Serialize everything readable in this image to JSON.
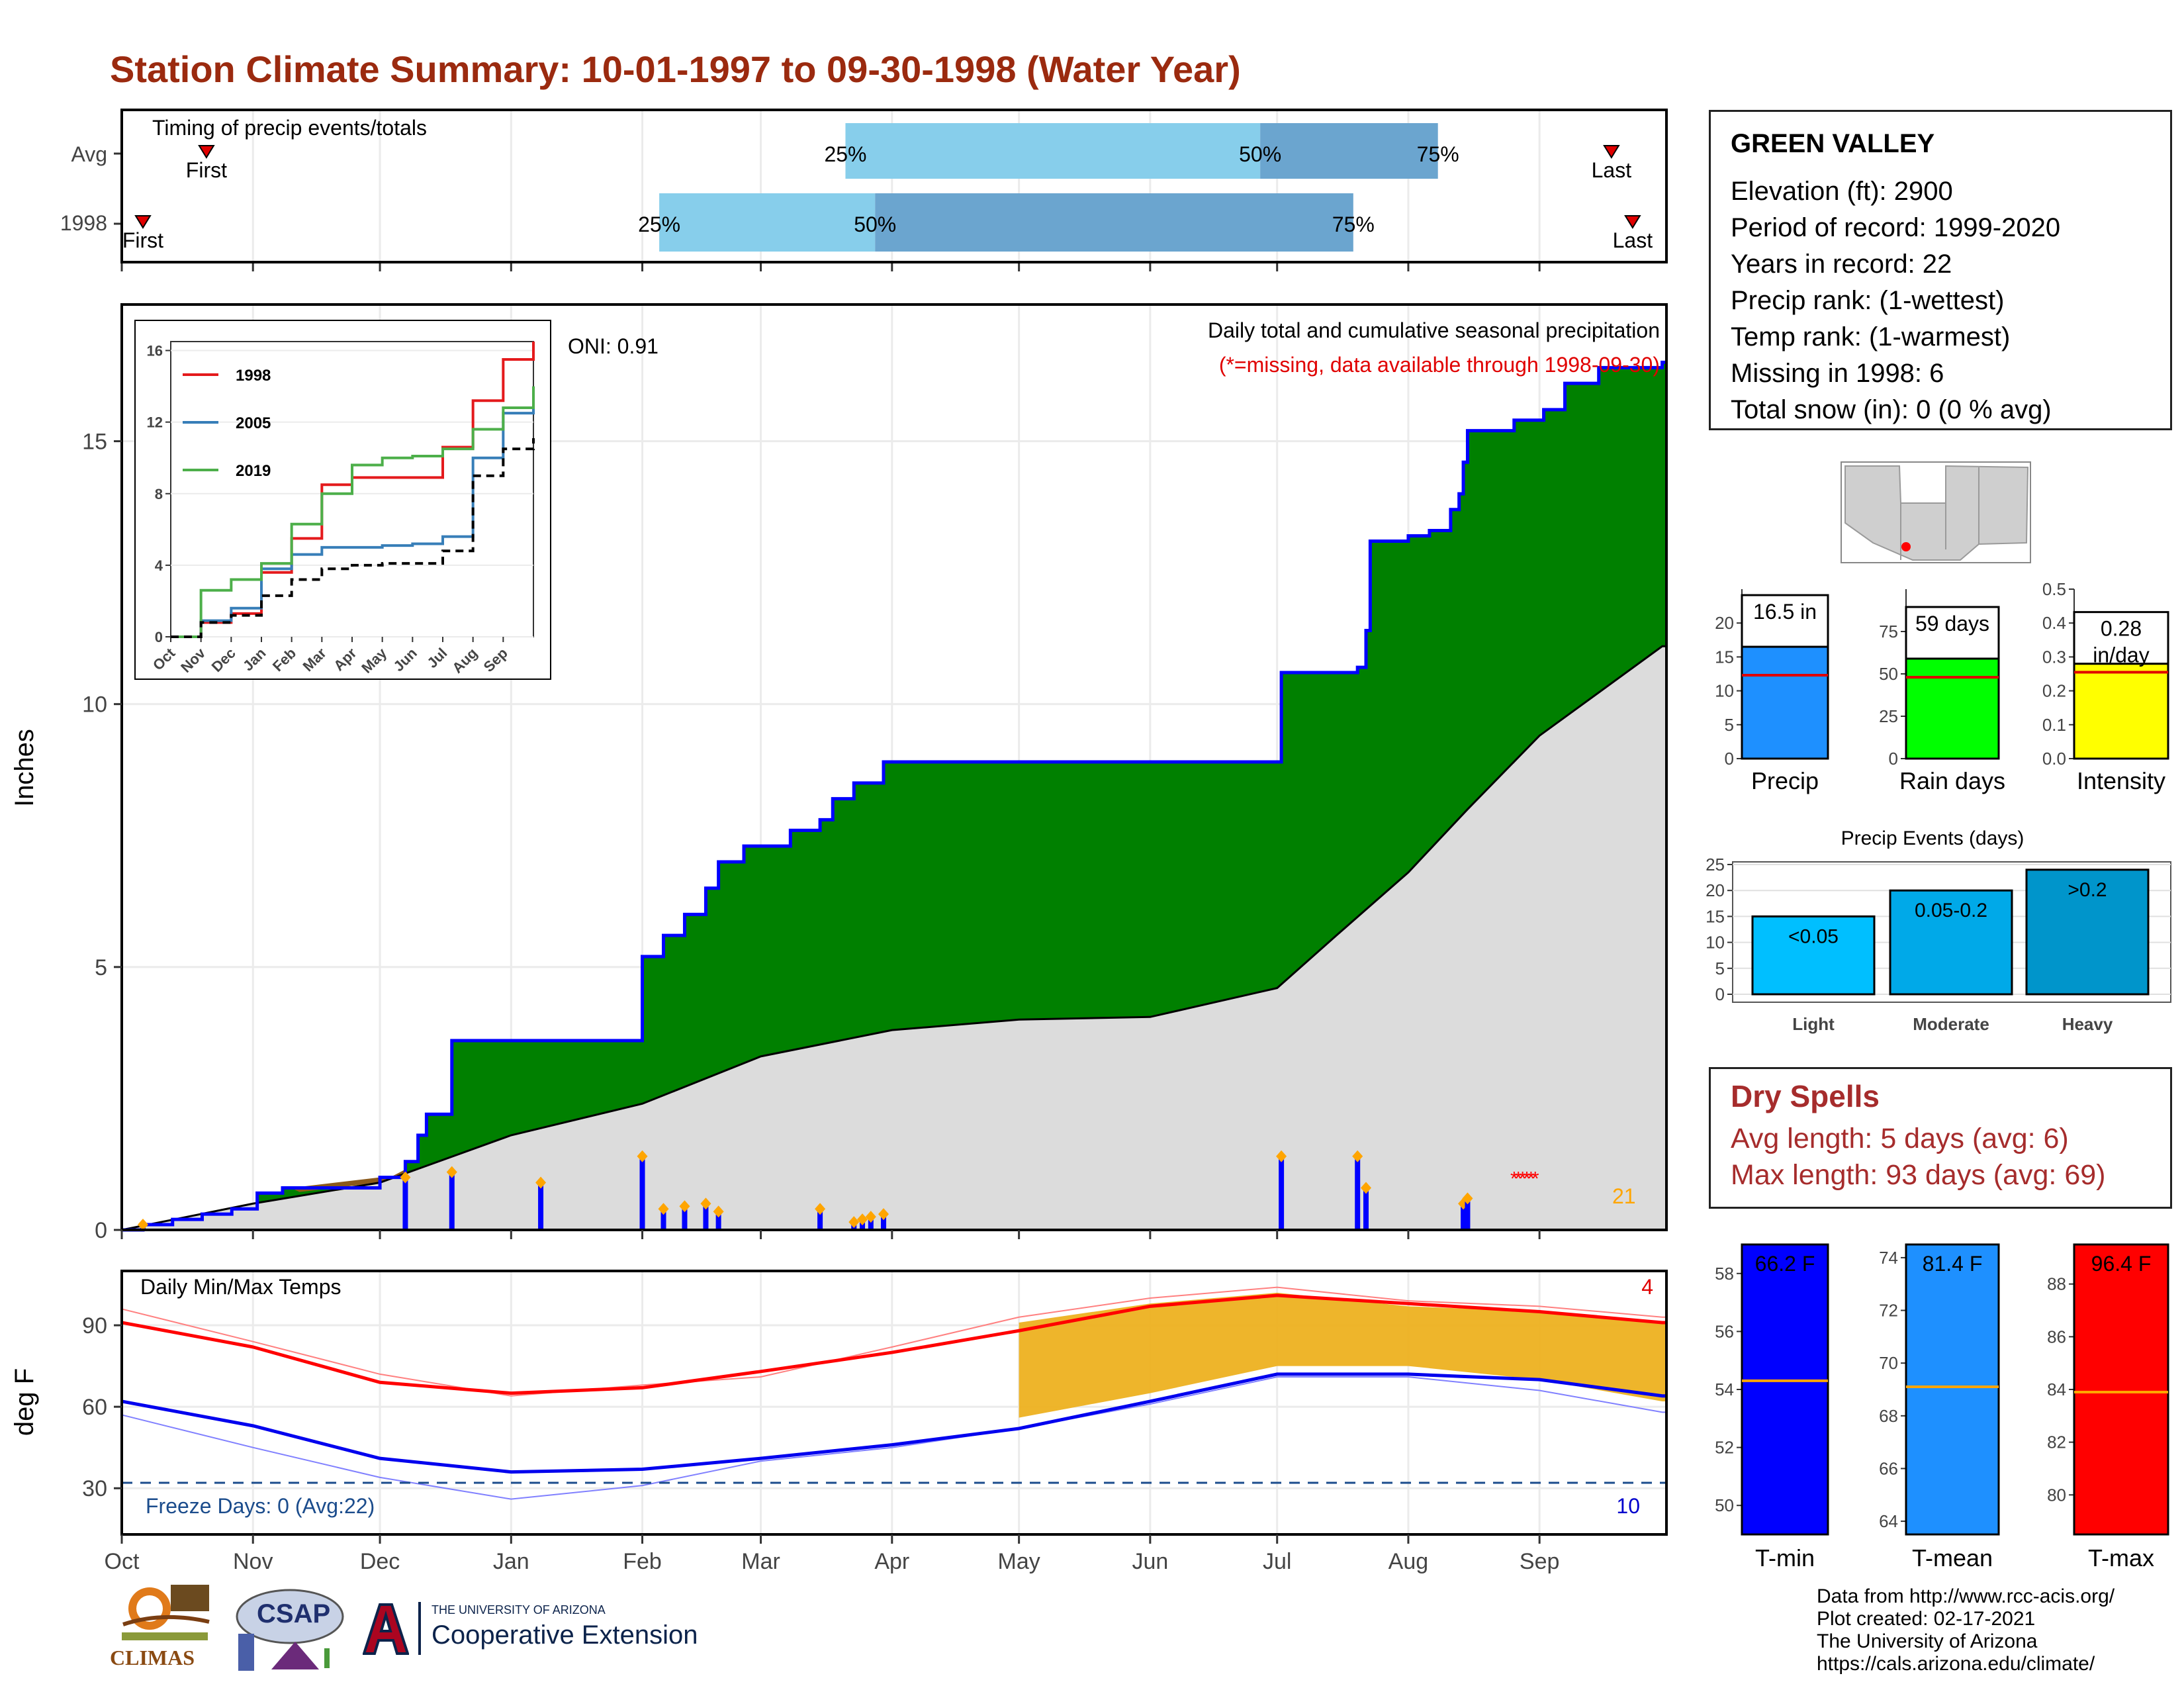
{
  "title": "Station Climate Summary: 10-01-1997 to 09-30-1998 (Water Year)",
  "timing": {
    "label": "Timing of precip events/totals",
    "rows": [
      {
        "label": "Avg",
        "first": "First",
        "last": "Last",
        "q25": "25%",
        "q50": "50%",
        "q75": "75%",
        "first_date": "1997-10-21",
        "q25_date": "1998-03-21",
        "q50_date": "1998-06-27",
        "q75_date": "1998-08-08",
        "last_date": "1998-09-18"
      },
      {
        "label": "1998",
        "first": "First",
        "last": "Last",
        "q25": "25%",
        "q50": "50%",
        "q75": "75%",
        "first_date": "1997-10-06",
        "q25_date": "1998-02-05",
        "q50_date": "1998-03-28",
        "q75_date": "1998-07-19",
        "last_date": "1998-09-23"
      }
    ]
  },
  "precip_panel": {
    "ylabel": "Inches",
    "header": "Daily total and cumulative seasonal precipitation",
    "missing_note": "(*=missing, data available through 1998-09-30)",
    "oni": "ONI: 0.91",
    "rain_count": "21",
    "colors": {
      "above": "#008000",
      "below": "#8B5A1B",
      "avg": "#DCDCDC",
      "line": "#0000FF",
      "daily": "#0000FF",
      "marker": "#FFA500",
      "missing": "#FF0000"
    }
  },
  "inset": {
    "series_names": [
      "1998",
      "2005",
      "2019"
    ],
    "colors": [
      "#E41A1C",
      "#377EB8",
      "#4DAF4A"
    ],
    "y_ticks": [
      "0",
      "4",
      "8",
      "12",
      "16"
    ],
    "x_ticks": [
      "Oct",
      "Nov",
      "Dec",
      "Jan",
      "Feb",
      "Mar",
      "Apr",
      "May",
      "Jun",
      "Jul",
      "Aug",
      "Sep"
    ]
  },
  "temp_panel": {
    "ylabel": "deg F",
    "label": "Daily Min/Max Temps",
    "freeze": "Freeze Days: 0 (Avg:22)",
    "hot_count": "4",
    "cold_count": "10",
    "freeze_line": 32
  },
  "station": {
    "name": "GREEN VALLEY",
    "rows": [
      "Elevation (ft): 2900",
      "Period of record: 1999-2020",
      "Years in record: 22",
      "Precip rank:  (1-wettest)",
      "Temp rank:  (1-warmest)",
      "Missing in 1998: 6",
      "Total snow (in): 0 (0 % avg)"
    ]
  },
  "summary_bars": [
    {
      "label": "Precip",
      "box": "16.5 in",
      "value": 16.5,
      "avg": 12.3,
      "color": "#1E90FF",
      "ticks": [
        "0",
        "5",
        "10",
        "15",
        "20"
      ],
      "max": 25
    },
    {
      "label": "Rain days",
      "box": "59 days",
      "value": 59,
      "avg": 48,
      "color": "#00FF00",
      "ticks": [
        "0",
        "25",
        "50",
        "75"
      ],
      "max": 100
    },
    {
      "label": "Intensity",
      "box": "0.28 in/day",
      "value": 0.28,
      "avg": 0.255,
      "color": "#FFFF00",
      "ticks": [
        "0.0",
        "0.1",
        "0.2",
        "0.3",
        "0.4",
        "0.5"
      ],
      "max": 0.5
    }
  ],
  "events": {
    "title": "Precip Events (days)",
    "categories": [
      "Light",
      "Moderate",
      "Heavy"
    ],
    "labels": [
      "<0.05",
      "0.05-0.2",
      ">0.2"
    ],
    "values": [
      15,
      20,
      24
    ],
    "colors": [
      "#00BFFF",
      "#00A9E8",
      "#0095CB"
    ],
    "ticks": [
      "0",
      "5",
      "10",
      "15",
      "20",
      "25"
    ]
  },
  "dry_spells": {
    "title": "Dry Spells",
    "avg": "Avg length: 5 days (avg: 6)",
    "max": "Max length: 93 days (avg: 69)"
  },
  "temp_bars": [
    {
      "label": "T-min",
      "box": "66.2 F",
      "value": 66.2,
      "avg": 54.3,
      "color": "#0000FF",
      "ticks": [
        "50",
        "52",
        "54",
        "56",
        "58"
      ],
      "min": 49,
      "max": 59
    },
    {
      "label": "T-mean",
      "box": "81.4 F",
      "value": 81.4,
      "avg": 69.1,
      "color": "#1E90FF",
      "ticks": [
        "64",
        "66",
        "68",
        "70",
        "72",
        "74"
      ],
      "min": 63.5,
      "max": 74.5
    },
    {
      "label": "T-max",
      "box": "96.4 F",
      "value": 96.4,
      "avg": 83.9,
      "color": "#FF0000",
      "ticks": [
        "80",
        "82",
        "84",
        "86",
        "88"
      ],
      "min": 78.5,
      "max": 89.5
    }
  ],
  "month_labels": [
    "Oct",
    "Nov",
    "Dec",
    "Jan",
    "Feb",
    "Mar",
    "Apr",
    "May",
    "Jun",
    "Jul",
    "Aug",
    "Sep"
  ],
  "credits": [
    "Data from http://www.rcc-acis.org/",
    "Plot created: 02-17-2021",
    "The University of Arizona",
    "https://cals.arizona.edu/climate/"
  ],
  "logos": {
    "climas": "CLIMAS",
    "csap": "CSAP",
    "ua_line1": "THE UNIVERSITY OF ARIZONA",
    "ua_line2": "Cooperative Extension"
  },
  "chart_data": [
    {
      "type": "area",
      "title": "Daily total and cumulative seasonal precipitation",
      "ylabel": "Inches",
      "ylim": [
        0,
        17.5
      ],
      "x_range": [
        "1997-10-01",
        "1998-09-30"
      ],
      "series": [
        {
          "name": "1998 cumulative",
          "x": [
            "1997-10-01",
            "1997-10-06",
            "1997-10-13",
            "1997-10-20",
            "1997-10-27",
            "1997-11-02",
            "1997-11-08",
            "1997-11-10",
            "1997-12-01",
            "1997-12-07",
            "1997-12-10",
            "1997-12-12",
            "1997-12-18",
            "1998-01-31",
            "1998-02-01",
            "1998-02-06",
            "1998-02-11",
            "1998-02-16",
            "1998-02-19",
            "1998-02-25",
            "1998-03-04",
            "1998-03-08",
            "1998-03-15",
            "1998-03-18",
            "1998-03-23",
            "1998-03-30",
            "1998-07-01",
            "1998-07-02",
            "1998-07-20",
            "1998-07-22",
            "1998-07-23",
            "1998-08-01",
            "1998-08-06",
            "1998-08-11",
            "1998-08-13",
            "1998-08-14",
            "1998-08-15",
            "1998-08-26",
            "1998-09-02",
            "1998-09-07",
            "1998-09-15",
            "1998-09-30"
          ],
          "values": [
            0.0,
            0.1,
            0.2,
            0.3,
            0.4,
            0.7,
            0.8,
            0.8,
            1.0,
            1.3,
            1.8,
            2.2,
            3.6,
            3.6,
            5.2,
            5.6,
            6.0,
            6.5,
            7.0,
            7.3,
            7.3,
            7.6,
            7.8,
            8.2,
            8.5,
            8.9,
            8.9,
            10.6,
            10.7,
            11.4,
            13.1,
            13.2,
            13.3,
            13.7,
            14.0,
            14.6,
            15.2,
            15.4,
            15.6,
            16.1,
            16.4,
            16.5
          ]
        },
        {
          "name": "average cumulative",
          "x": [
            "1997-10-01",
            "1997-11-01",
            "1997-12-01",
            "1998-01-01",
            "1998-02-01",
            "1998-03-01",
            "1998-04-01",
            "1998-05-01",
            "1998-06-01",
            "1998-07-01",
            "1998-07-15",
            "1998-08-01",
            "1998-08-15",
            "1998-09-01",
            "1998-09-30"
          ],
          "values": [
            0.0,
            0.5,
            0.9,
            1.8,
            2.4,
            3.3,
            3.8,
            4.0,
            4.05,
            4.6,
            5.6,
            6.8,
            8.0,
            9.4,
            11.1
          ]
        }
      ],
      "daily_events": {
        "x": [
          "1997-10-06",
          "1997-12-07",
          "1997-12-18",
          "1998-01-08",
          "1998-02-01",
          "1998-02-06",
          "1998-02-11",
          "1998-02-16",
          "1998-02-19",
          "1998-03-15",
          "1998-03-23",
          "1998-03-25",
          "1998-03-27",
          "1998-03-30",
          "1998-07-02",
          "1998-07-20",
          "1998-07-22",
          "1998-08-14",
          "1998-08-15"
        ],
        "values": [
          0.1,
          1.0,
          1.1,
          0.9,
          1.4,
          0.4,
          0.45,
          0.5,
          0.35,
          0.4,
          0.15,
          0.2,
          0.25,
          0.3,
          1.4,
          1.4,
          0.8,
          0.5,
          0.6
        ]
      },
      "missing_dates": [
        "1998-08-26",
        "1998-08-27",
        "1998-08-28",
        "1998-08-29",
        "1998-08-30",
        "1998-08-31"
      ]
    },
    {
      "type": "line",
      "title": "1998, 2005, 2019 cumulative precipitation",
      "x": [
        "Oct",
        "Nov",
        "Dec",
        "Jan",
        "Feb",
        "Mar",
        "Apr",
        "May",
        "Jun",
        "Jul",
        "Aug",
        "Sep",
        "Sep-end"
      ],
      "ylim": [
        0,
        16
      ],
      "series": [
        {
          "name": "1998",
          "values": [
            0.0,
            0.8,
            1.3,
            3.6,
            5.5,
            8.5,
            8.9,
            8.9,
            8.9,
            10.6,
            13.2,
            15.5,
            16.5
          ]
        },
        {
          "name": "2005",
          "values": [
            0.0,
            0.9,
            1.6,
            3.8,
            4.6,
            5.0,
            5.0,
            5.1,
            5.2,
            5.6,
            10.0,
            12.5,
            13.0
          ]
        },
        {
          "name": "2019",
          "values": [
            0.0,
            2.6,
            3.2,
            4.1,
            6.3,
            8.0,
            9.6,
            10.0,
            10.1,
            10.5,
            11.6,
            12.8,
            14.0
          ]
        },
        {
          "name": "",
          "values": [
            0.0,
            0.8,
            1.2,
            2.3,
            3.2,
            3.8,
            4.0,
            4.1,
            4.1,
            4.8,
            9.0,
            10.5,
            11.1
          ]
        }
      ]
    },
    {
      "type": "line",
      "title": "Daily Min/Max Temps",
      "ylabel": "deg F",
      "ylim": [
        13,
        110
      ],
      "x": [
        "1997-10-01",
        "1997-11-01",
        "1997-12-01",
        "1998-01-01",
        "1998-02-01",
        "1998-03-01",
        "1998-04-01",
        "1998-05-01",
        "1998-06-01",
        "1998-07-01",
        "1998-08-01",
        "1998-09-01",
        "1998-09-30"
      ],
      "series": [
        {
          "name": "avg max",
          "values": [
            91,
            82,
            69,
            65,
            67,
            73,
            80,
            88,
            97,
            101,
            98,
            95,
            91
          ]
        },
        {
          "name": "avg min",
          "values": [
            62,
            53,
            41,
            36,
            37,
            41,
            46,
            52,
            62,
            72,
            72,
            70,
            64
          ]
        },
        {
          "name": "1998 max",
          "values": [
            96,
            84,
            72,
            64,
            68,
            71,
            82,
            93,
            100,
            104,
            99,
            97,
            93
          ]
        },
        {
          "name": "1998 min",
          "values": [
            57,
            45,
            34,
            26,
            31,
            40,
            45,
            52,
            61,
            71,
            71,
            66,
            58
          ]
        }
      ],
      "freeze_line": 32
    },
    {
      "type": "bar",
      "title": "Precip Events (days)",
      "categories": [
        "Light",
        "Moderate",
        "Heavy"
      ],
      "values": [
        15,
        20,
        24
      ]
    }
  ]
}
